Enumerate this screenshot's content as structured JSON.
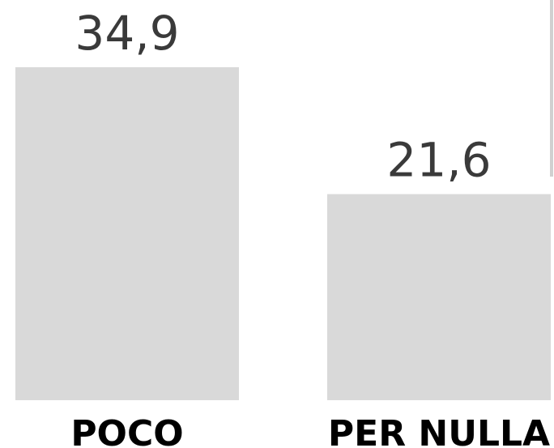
{
  "chart_data": {
    "type": "bar",
    "categories": [
      "POCO",
      "PER NULLA"
    ],
    "values": [
      34.9,
      21.6
    ],
    "value_labels": [
      "34,9",
      "21,6"
    ],
    "title": "",
    "xlabel": "",
    "ylabel": "",
    "ylim": [
      0,
      34.9
    ],
    "grid": false,
    "bar_color": "#d9d9d9",
    "value_label_color": "#3a3a3a",
    "category_label_color": "#000000"
  }
}
